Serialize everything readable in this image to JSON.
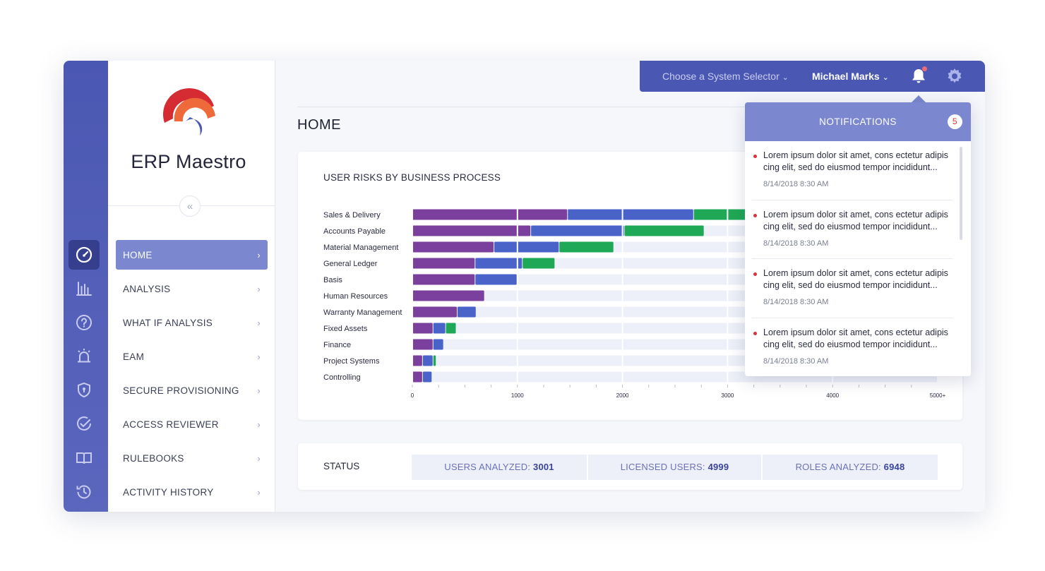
{
  "app": {
    "name": "ERP Maestro"
  },
  "topbar": {
    "system_selector": "Choose a System Selector",
    "user_name": "Michael Marks"
  },
  "nav": [
    {
      "label": "HOME",
      "active": true
    },
    {
      "label": "ANALYSIS"
    },
    {
      "label": "WHAT IF ANALYSIS"
    },
    {
      "label": "EAM"
    },
    {
      "label": "SECURE PROVISIONING"
    },
    {
      "label": "ACCESS REVIEWER"
    },
    {
      "label": "RULEBOOKS"
    },
    {
      "label": "ACTIVITY HISTORY"
    }
  ],
  "page": {
    "title": "HOME"
  },
  "chart_card": {
    "title": "USER RISKS BY BUSINESS PROCESS"
  },
  "chart_data": {
    "type": "bar",
    "orientation": "horizontal",
    "stacked": true,
    "categories": [
      "Sales & Delivery",
      "Accounts Payable",
      "Material Management",
      "General Ledger",
      "Basis",
      "Human Resources",
      "Warranty Management",
      "Fixed Assets",
      "Finance",
      "Project Systems",
      "Controlling"
    ],
    "series": [
      {
        "color": "#7b3f9e",
        "values": [
          1480,
          1130,
          780,
          600,
          600,
          690,
          430,
          200,
          200,
          100,
          100
        ]
      },
      {
        "color": "#4a63c8",
        "values": [
          1200,
          890,
          620,
          450,
          400,
          0,
          180,
          120,
          100,
          100,
          90
        ]
      },
      {
        "color": "#1fa855",
        "values": [
          980,
          760,
          520,
          310,
          0,
          0,
          0,
          100,
          0,
          30,
          0
        ]
      }
    ],
    "x_ticks": [
      "0",
      "1000",
      "2000",
      "3000",
      "4000",
      "5000+"
    ],
    "xlim": [
      0,
      5000
    ],
    "grid": true
  },
  "status": {
    "label": "STATUS",
    "items": [
      {
        "label": "USERS ANALYZED:",
        "value": "3001"
      },
      {
        "label": "LICENSED USERS:",
        "value": "4999"
      },
      {
        "label": "ROLES ANALYZED:",
        "value": "6948"
      }
    ]
  },
  "notifications": {
    "title": "NOTIFICATIONS",
    "count": "5",
    "items": [
      {
        "text": "Lorem ipsum dolor sit amet, cons ectetur adipis cing elit, sed do eiusmod tempor incididunt...",
        "time": "8/14/2018  8:30 AM"
      },
      {
        "text": "Lorem ipsum dolor sit amet, cons ectetur adipis cing elit, sed do eiusmod tempor incididunt...",
        "time": "8/14/2018  8:30 AM"
      },
      {
        "text": "Lorem ipsum dolor sit amet, cons ectetur adipis cing elit, sed do eiusmod tempor incididunt...",
        "time": "8/14/2018  8:30 AM"
      },
      {
        "text": "Lorem ipsum dolor sit amet, cons ectetur adipis cing elit, sed do eiusmod tempor incididunt...",
        "time": "8/14/2018  8:30 AM"
      }
    ]
  },
  "icons": {
    "iconbar": [
      "dashboard-icon",
      "bar-chart-icon",
      "help-icon",
      "alarm-icon",
      "shield-icon",
      "check-circle-icon",
      "book-icon",
      "history-icon"
    ]
  },
  "colors": {
    "primary": "#4b58b3",
    "accent": "#7b87ce",
    "alert": "#e0313e"
  }
}
